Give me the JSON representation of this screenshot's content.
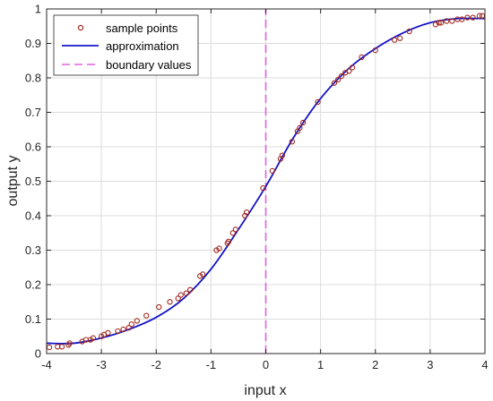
{
  "chart_data": {
    "type": "line",
    "xlabel": "input x",
    "ylabel": "output y",
    "xlim": [
      -4,
      4
    ],
    "ylim": [
      0,
      1
    ],
    "x_ticks": [
      -4,
      -3,
      -2,
      -1,
      0,
      1,
      2,
      3,
      4
    ],
    "x_tick_labels": [
      "-4",
      "-3",
      "-2",
      "-1",
      "0",
      "1",
      "2",
      "3",
      "4"
    ],
    "y_ticks": [
      0,
      0.1,
      0.2,
      0.3,
      0.4,
      0.5,
      0.6,
      0.7,
      0.8,
      0.9,
      1
    ],
    "y_tick_labels": [
      "0",
      "0.1",
      "0.2",
      "0.3",
      "0.4",
      "0.5",
      "0.6",
      "0.7",
      "0.8",
      "0.9",
      "1"
    ],
    "grid": true,
    "legend_position": "top-left",
    "series": [
      {
        "name": "sample points",
        "kind": "scatter",
        "color": "#a0281e",
        "x": [
          -3.95,
          -3.8,
          -3.72,
          -3.6,
          -3.58,
          -3.35,
          -3.28,
          -3.2,
          -3.15,
          -3.0,
          -2.95,
          -2.88,
          -2.7,
          -2.6,
          -2.5,
          -2.45,
          -2.35,
          -2.18,
          -1.95,
          -1.75,
          -1.6,
          -1.55,
          -1.45,
          -1.38,
          -1.2,
          -1.15,
          -0.9,
          -0.85,
          -0.7,
          -0.68,
          -0.6,
          -0.55,
          -0.38,
          -0.35,
          -0.05,
          0.12,
          0.27,
          0.3,
          0.48,
          0.58,
          0.62,
          0.68,
          0.95,
          1.25,
          1.32,
          1.38,
          1.45,
          1.52,
          1.58,
          1.75,
          2.0,
          2.35,
          2.45,
          2.62,
          3.1,
          3.16,
          3.2,
          3.3,
          3.4,
          3.5,
          3.58,
          3.68,
          3.78,
          3.9,
          3.95
        ],
        "y": [
          0.018,
          0.02,
          0.02,
          0.025,
          0.03,
          0.035,
          0.04,
          0.04,
          0.045,
          0.05,
          0.055,
          0.06,
          0.065,
          0.07,
          0.075,
          0.085,
          0.095,
          0.11,
          0.135,
          0.15,
          0.16,
          0.17,
          0.175,
          0.185,
          0.225,
          0.23,
          0.3,
          0.305,
          0.32,
          0.325,
          0.35,
          0.36,
          0.4,
          0.41,
          0.48,
          0.53,
          0.565,
          0.575,
          0.615,
          0.645,
          0.655,
          0.67,
          0.73,
          0.785,
          0.795,
          0.805,
          0.815,
          0.82,
          0.83,
          0.86,
          0.88,
          0.91,
          0.915,
          0.935,
          0.955,
          0.96,
          0.96,
          0.965,
          0.965,
          0.97,
          0.97,
          0.975,
          0.975,
          0.98,
          0.98
        ]
      },
      {
        "name": "approximation",
        "kind": "line",
        "color": "#1414c8",
        "x": [
          -4,
          -3.5,
          -3,
          -2.5,
          -2,
          -1.5,
          -1,
          -0.5,
          0,
          0.5,
          1,
          1.5,
          2,
          2.5,
          3,
          3.5,
          4
        ],
        "y": [
          0.03,
          0.03,
          0.045,
          0.07,
          0.105,
          0.16,
          0.245,
          0.36,
          0.485,
          0.625,
          0.74,
          0.825,
          0.885,
          0.93,
          0.96,
          0.972,
          0.972
        ]
      },
      {
        "name": "boundary values",
        "kind": "line",
        "style": "dashed",
        "color": "#e060e0",
        "x": [
          0,
          0
        ],
        "y": [
          0,
          1
        ]
      }
    ]
  }
}
